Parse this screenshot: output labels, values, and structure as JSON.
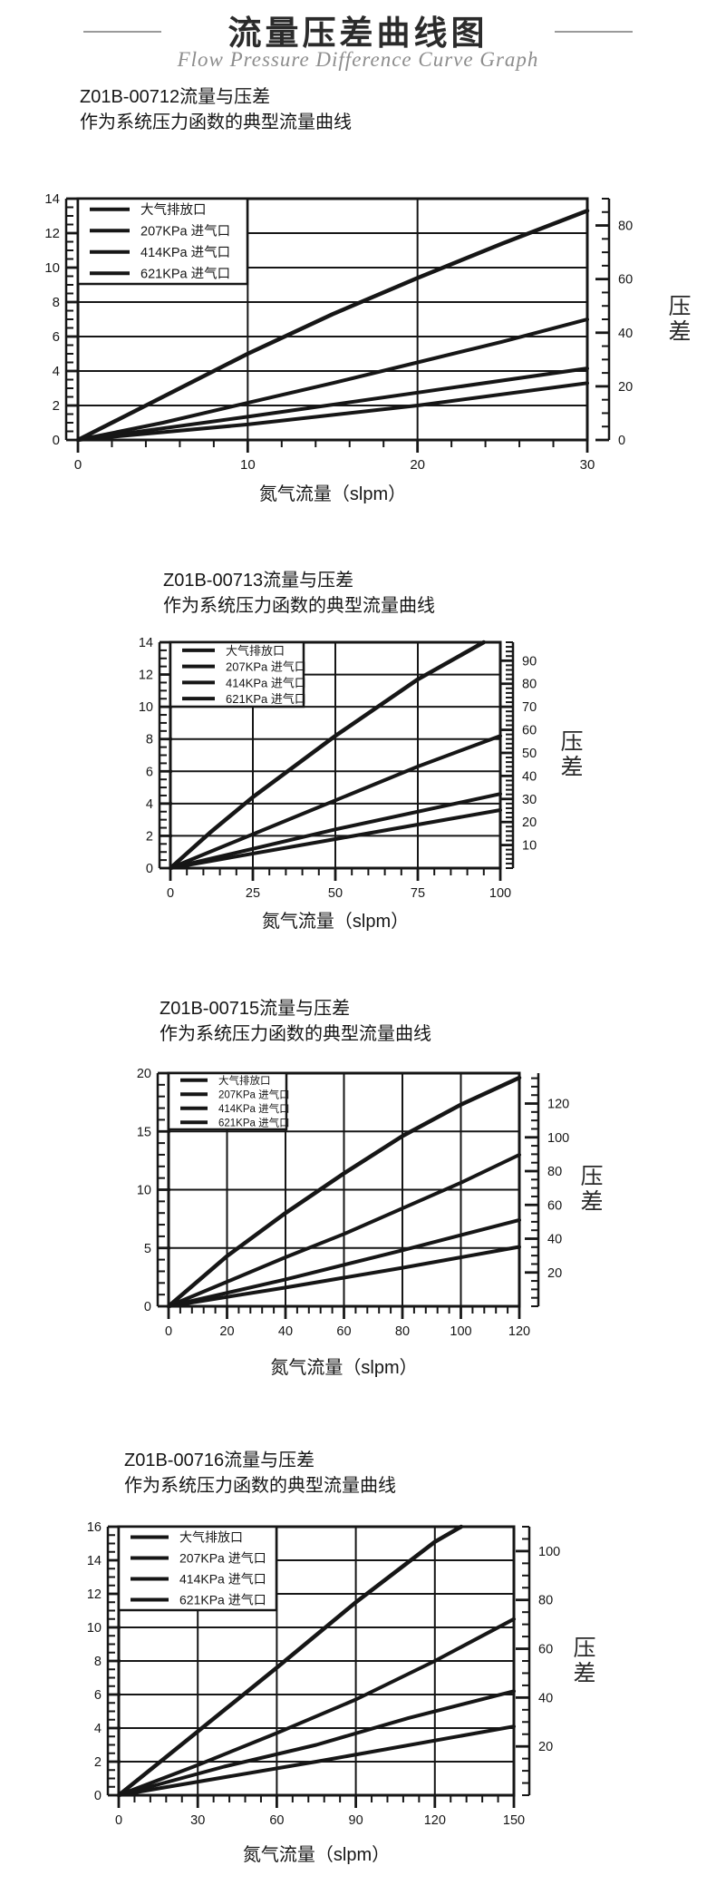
{
  "page": {
    "title": "流量压差曲线图",
    "subtitle": "Flow Pressure Difference Curve Graph",
    "ink_color": "#161616",
    "rule_color": "#9a9a9a"
  },
  "chart_data": [
    {
      "type": "line",
      "title": "Z01B-00712流量与压差",
      "subtitle": "作为系统压力函数的典型流量曲线",
      "xlabel": "氮气流量（slpm）",
      "right_axis_label": "压差",
      "xlim": [
        0,
        30
      ],
      "x_ticks": [
        0,
        10,
        20,
        30
      ],
      "x_minor_step": 2,
      "ylim": [
        0,
        14
      ],
      "y_ticks": [
        0,
        2,
        4,
        6,
        8,
        10,
        12,
        14
      ],
      "y_minor_step": 0.5,
      "right_ticks": [
        0,
        20,
        40,
        60,
        80
      ],
      "right_axis_max": 90,
      "right_minor_step": 5,
      "grid": true,
      "legend_position": "top-left",
      "legend": [
        "大气排放口",
        "207KPa 进气口",
        "414KPa 进气口",
        "621KPa 进气口"
      ],
      "series": [
        {
          "name": "大气排放口",
          "points": [
            [
              0,
              0
            ],
            [
              5,
              2.5
            ],
            [
              10,
              5.0
            ],
            [
              15,
              7.3
            ],
            [
              20,
              9.4
            ],
            [
              25,
              11.4
            ],
            [
              30,
              13.3
            ]
          ]
        },
        {
          "name": "207KPa 进气口",
          "points": [
            [
              0,
              0
            ],
            [
              5,
              1.0
            ],
            [
              10,
              2.15
            ],
            [
              15,
              3.3
            ],
            [
              20,
              4.5
            ],
            [
              25,
              5.7
            ],
            [
              30,
              7.0
            ]
          ]
        },
        {
          "name": "414KPa 进气口",
          "points": [
            [
              0,
              0
            ],
            [
              10,
              1.35
            ],
            [
              20,
              2.75
            ],
            [
              30,
              4.15
            ]
          ]
        },
        {
          "name": "621KPa 进气口",
          "points": [
            [
              0,
              0
            ],
            [
              10,
              0.9
            ],
            [
              20,
              2.0
            ],
            [
              30,
              3.3
            ]
          ]
        }
      ]
    },
    {
      "type": "line",
      "title": "Z01B-00713流量与压差",
      "subtitle": "作为系统压力函数的典型流量曲线",
      "xlabel": "氮气流量（slpm）",
      "right_axis_label": "压差",
      "xlim": [
        0,
        100
      ],
      "x_ticks": [
        0,
        25,
        50,
        75,
        100
      ],
      "x_minor_step": 5,
      "ylim": [
        0,
        14
      ],
      "y_ticks": [
        0,
        2,
        4,
        6,
        8,
        10,
        12,
        14
      ],
      "y_minor_step": 0.5,
      "right_ticks": [
        10,
        20,
        30,
        40,
        50,
        60,
        70,
        80,
        90
      ],
      "right_axis_max": 98,
      "right_minor_step": 2,
      "grid": true,
      "legend_position": "top-left",
      "legend": [
        "大气排放口",
        "207KPa 进气口",
        "414KPa 进气口",
        "621KPa 进气口"
      ],
      "series": [
        {
          "name": "大气排放口",
          "points": [
            [
              0,
              0
            ],
            [
              12,
              2.2
            ],
            [
              25,
              4.4
            ],
            [
              50,
              8.2
            ],
            [
              75,
              11.7
            ],
            [
              95,
              14
            ]
          ]
        },
        {
          "name": "207KPa 进气口",
          "points": [
            [
              0,
              0
            ],
            [
              25,
              2.1
            ],
            [
              50,
              4.2
            ],
            [
              75,
              6.3
            ],
            [
              100,
              8.2
            ]
          ]
        },
        {
          "name": "414KPa 进气口",
          "points": [
            [
              0,
              0
            ],
            [
              50,
              2.4
            ],
            [
              100,
              4.6
            ]
          ]
        },
        {
          "name": "621KPa 进气口",
          "points": [
            [
              0,
              0
            ],
            [
              50,
              1.8
            ],
            [
              100,
              3.6
            ]
          ]
        }
      ]
    },
    {
      "type": "line",
      "title": "Z01B-00715流量与压差",
      "subtitle": "作为系统压力函数的典型流量曲线",
      "xlabel": "氮气流量（slpm）",
      "right_axis_label": "压差",
      "xlim": [
        0,
        120
      ],
      "x_ticks": [
        0,
        20,
        40,
        60,
        80,
        100,
        120
      ],
      "x_minor_step": 4,
      "ylim": [
        0,
        20
      ],
      "y_ticks": [
        0,
        5,
        10,
        15,
        20
      ],
      "y_minor_step": 1,
      "right_ticks": [
        20,
        40,
        60,
        80,
        100,
        120
      ],
      "right_axis_max": 138,
      "right_minor_step": 5,
      "grid": true,
      "legend_position": "top-left",
      "legend": [
        "大气排放口",
        "207KPa 进气口",
        "414KPa 进气口",
        "621KPa 进气口"
      ],
      "series": [
        {
          "name": "大气排放口",
          "points": [
            [
              0,
              0
            ],
            [
              20,
              4.3
            ],
            [
              40,
              8.0
            ],
            [
              60,
              11.4
            ],
            [
              80,
              14.6
            ],
            [
              100,
              17.3
            ],
            [
              120,
              19.6
            ]
          ]
        },
        {
          "name": "207KPa 进气口",
          "points": [
            [
              0,
              0
            ],
            [
              20,
              2.1
            ],
            [
              40,
              4.2
            ],
            [
              60,
              6.2
            ],
            [
              80,
              8.4
            ],
            [
              100,
              10.6
            ],
            [
              120,
              13.0
            ]
          ]
        },
        {
          "name": "414KPa 进气口",
          "points": [
            [
              0,
              0
            ],
            [
              40,
              2.3
            ],
            [
              80,
              4.8
            ],
            [
              120,
              7.4
            ]
          ]
        },
        {
          "name": "621KPa 进气口",
          "points": [
            [
              0,
              0
            ],
            [
              40,
              1.6
            ],
            [
              80,
              3.3
            ],
            [
              120,
              5.1
            ]
          ]
        }
      ]
    },
    {
      "type": "line",
      "title": "Z01B-00716流量与压差",
      "subtitle": "作为系统压力函数的典型流量曲线",
      "xlabel": "氮气流量（slpm）",
      "right_axis_label": "压差",
      "xlim": [
        0,
        150
      ],
      "x_ticks": [
        0,
        30,
        60,
        90,
        120,
        150
      ],
      "x_minor_step": 6,
      "ylim": [
        0,
        16
      ],
      "y_ticks": [
        0,
        2,
        4,
        6,
        8,
        10,
        12,
        14,
        16
      ],
      "y_minor_step": 0.5,
      "right_ticks": [
        20,
        40,
        60,
        80,
        100
      ],
      "right_axis_max": 110,
      "right_minor_step": 5,
      "grid": true,
      "legend_position": "top-left",
      "legend": [
        "大气排放口",
        "207KPa 进气口",
        "414KPa 进气口",
        "621KPa 进气口"
      ],
      "series": [
        {
          "name": "大气排放口",
          "points": [
            [
              0,
              0
            ],
            [
              30,
              3.8
            ],
            [
              60,
              7.6
            ],
            [
              90,
              11.5
            ],
            [
              120,
              15.1
            ],
            [
              130,
              16.0
            ]
          ]
        },
        {
          "name": "207KPa 进气口",
          "points": [
            [
              0,
              0
            ],
            [
              30,
              1.8
            ],
            [
              60,
              3.7
            ],
            [
              90,
              5.7
            ],
            [
              120,
              8.0
            ],
            [
              150,
              10.5
            ]
          ]
        },
        {
          "name": "414KPa 进气口",
          "points": [
            [
              0,
              0
            ],
            [
              40,
              1.7
            ],
            [
              75,
              3.0
            ],
            [
              110,
              4.6
            ],
            [
              150,
              6.2
            ]
          ]
        },
        {
          "name": "621KPa 进气口",
          "points": [
            [
              0,
              0
            ],
            [
              75,
              2.0
            ],
            [
              150,
              4.1
            ]
          ]
        }
      ]
    }
  ]
}
